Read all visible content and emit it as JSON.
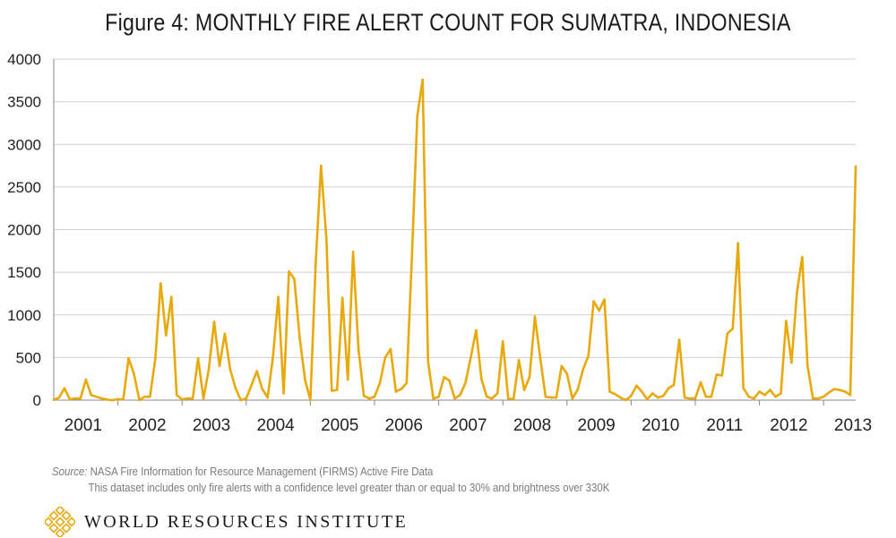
{
  "chart_data": {
    "type": "line",
    "title": "Figure 4: MONTHLY FIRE ALERT COUNT FOR SUMATRA, INDONESIA",
    "xlabel": "",
    "ylabel": "",
    "ylim": [
      0,
      4000
    ],
    "yticks": [
      "0",
      "500",
      "1000",
      "1500",
      "2000",
      "2500",
      "3000",
      "3500",
      "4000"
    ],
    "year_labels": [
      "2001",
      "2002",
      "2003",
      "2004",
      "2005",
      "2006",
      "2007",
      "2008",
      "2009",
      "2010",
      "2011",
      "2012",
      "2013"
    ],
    "grid": true,
    "legend": "none",
    "line_color": "#E8A90C",
    "series": [
      {
        "start": "2001-01",
        "values": [
          5,
          30,
          140,
          10,
          20,
          20,
          240,
          60,
          40,
          20,
          5,
          0,
          10,
          10,
          490,
          310,
          0,
          40,
          40,
          490,
          1370,
          760,
          1210,
          60,
          10,
          20,
          20,
          490,
          20,
          360,
          920,
          400,
          780,
          360,
          140,
          0,
          20,
          180,
          340,
          130,
          30,
          500,
          1210,
          80,
          1510,
          1420,
          730,
          240,
          0,
          1620,
          2750,
          1890,
          110,
          120,
          1200,
          240,
          1740,
          600,
          50,
          20,
          40,
          200,
          500,
          600,
          100,
          130,
          200,
          1700,
          3330,
          3760,
          460,
          20,
          40,
          270,
          230,
          20,
          60,
          200,
          500,
          820,
          250,
          40,
          20,
          80,
          690,
          20,
          10,
          470,
          120,
          270,
          980,
          490,
          40,
          30,
          30,
          400,
          310,
          20,
          120,
          360,
          520,
          1160,
          1050,
          1180,
          100,
          70,
          30,
          0,
          50,
          170,
          100,
          10,
          80,
          30,
          50,
          140,
          180,
          710,
          30,
          20,
          20,
          210,
          40,
          40,
          300,
          290,
          780,
          840,
          1840,
          140,
          40,
          20,
          100,
          60,
          120,
          40,
          80,
          930,
          440,
          1260,
          1680,
          400,
          20,
          20,
          40,
          90,
          130,
          120,
          100,
          60,
          2740
        ]
      }
    ]
  },
  "source": {
    "label": "Source:",
    "text": "NASA Fire Information for Resource Management (FIRMS) Active Fire Data",
    "note": "This dataset includes only fire alerts with a confidence level greater than or equal to 30% and brightness over 330K"
  },
  "footer": {
    "org_name": "WORLD RESOURCES INSTITUTE",
    "logo_icon": "wri-lattice-logo-icon",
    "logo_color": "#E8A90C"
  }
}
